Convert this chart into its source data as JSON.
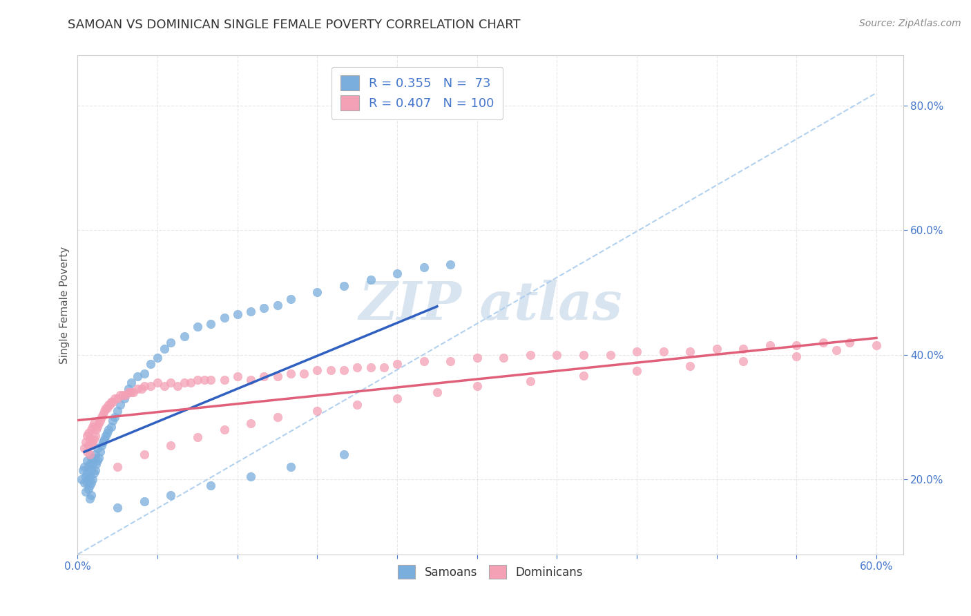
{
  "title": "SAMOAN VS DOMINICAN SINGLE FEMALE POVERTY CORRELATION CHART",
  "source": "Source: ZipAtlas.com",
  "ylabel": "Single Female Poverty",
  "xlim": [
    0.0,
    0.62
  ],
  "ylim": [
    0.08,
    0.88
  ],
  "xticks": [
    0.0,
    0.06,
    0.12,
    0.18,
    0.24,
    0.3,
    0.36,
    0.42,
    0.48,
    0.54,
    0.6
  ],
  "ytick_positions": [
    0.2,
    0.4,
    0.6,
    0.8
  ],
  "ytick_labels": [
    "20.0%",
    "40.0%",
    "60.0%",
    "80.0%"
  ],
  "blue_R": 0.355,
  "blue_N": 73,
  "pink_R": 0.407,
  "pink_N": 100,
  "blue_color": "#7aaedd",
  "pink_color": "#f4a0b5",
  "blue_line_color": "#3060c0",
  "pink_line_color": "#e0607a",
  "ref_line_color": "#aaccee",
  "watermark_text_color": "#d8e4f0",
  "background_color": "#FFFFFF",
  "grid_color": "#dddddd",
  "title_color": "#333333",
  "axis_label_color": "#555555",
  "tick_color": "#4477cc",
  "title_fontsize": 13,
  "source_fontsize": 10,
  "ylabel_fontsize": 11,
  "tick_fontsize": 11,
  "legend_fontsize": 13,
  "watermark_fontsize": 55,
  "blue_x": [
    0.003,
    0.004,
    0.005,
    0.005,
    0.006,
    0.006,
    0.007,
    0.007,
    0.007,
    0.008,
    0.008,
    0.008,
    0.009,
    0.009,
    0.009,
    0.009,
    0.01,
    0.01,
    0.01,
    0.01,
    0.011,
    0.011,
    0.012,
    0.012,
    0.013,
    0.013,
    0.014,
    0.015,
    0.015,
    0.016,
    0.017,
    0.018,
    0.019,
    0.02,
    0.021,
    0.022,
    0.023,
    0.025,
    0.026,
    0.028,
    0.03,
    0.032,
    0.035,
    0.038,
    0.04,
    0.045,
    0.05,
    0.055,
    0.06,
    0.065,
    0.07,
    0.08,
    0.09,
    0.1,
    0.11,
    0.12,
    0.13,
    0.14,
    0.15,
    0.16,
    0.18,
    0.2,
    0.22,
    0.24,
    0.26,
    0.28,
    0.03,
    0.05,
    0.07,
    0.1,
    0.13,
    0.16,
    0.2
  ],
  "blue_y": [
    0.2,
    0.215,
    0.195,
    0.22,
    0.18,
    0.205,
    0.195,
    0.21,
    0.23,
    0.185,
    0.2,
    0.22,
    0.17,
    0.19,
    0.205,
    0.225,
    0.175,
    0.195,
    0.215,
    0.235,
    0.2,
    0.225,
    0.21,
    0.235,
    0.215,
    0.24,
    0.225,
    0.23,
    0.25,
    0.235,
    0.245,
    0.255,
    0.26,
    0.265,
    0.27,
    0.275,
    0.28,
    0.285,
    0.295,
    0.3,
    0.31,
    0.32,
    0.33,
    0.345,
    0.355,
    0.365,
    0.37,
    0.385,
    0.395,
    0.41,
    0.42,
    0.43,
    0.445,
    0.45,
    0.46,
    0.465,
    0.47,
    0.475,
    0.48,
    0.49,
    0.5,
    0.51,
    0.52,
    0.53,
    0.54,
    0.545,
    0.155,
    0.165,
    0.175,
    0.19,
    0.205,
    0.22,
    0.24
  ],
  "pink_x": [
    0.005,
    0.006,
    0.007,
    0.007,
    0.008,
    0.008,
    0.009,
    0.009,
    0.01,
    0.01,
    0.011,
    0.011,
    0.012,
    0.012,
    0.013,
    0.014,
    0.015,
    0.016,
    0.017,
    0.018,
    0.019,
    0.02,
    0.021,
    0.022,
    0.023,
    0.024,
    0.025,
    0.026,
    0.028,
    0.03,
    0.032,
    0.034,
    0.036,
    0.038,
    0.04,
    0.042,
    0.045,
    0.048,
    0.05,
    0.055,
    0.06,
    0.065,
    0.07,
    0.075,
    0.08,
    0.085,
    0.09,
    0.095,
    0.1,
    0.11,
    0.12,
    0.13,
    0.14,
    0.15,
    0.16,
    0.17,
    0.18,
    0.19,
    0.2,
    0.21,
    0.22,
    0.23,
    0.24,
    0.26,
    0.28,
    0.3,
    0.32,
    0.34,
    0.36,
    0.38,
    0.4,
    0.42,
    0.44,
    0.46,
    0.48,
    0.5,
    0.52,
    0.54,
    0.56,
    0.58,
    0.03,
    0.05,
    0.07,
    0.09,
    0.11,
    0.13,
    0.15,
    0.18,
    0.21,
    0.24,
    0.27,
    0.3,
    0.34,
    0.38,
    0.42,
    0.46,
    0.5,
    0.54,
    0.57,
    0.6
  ],
  "pink_y": [
    0.25,
    0.26,
    0.245,
    0.27,
    0.255,
    0.275,
    0.24,
    0.265,
    0.255,
    0.28,
    0.26,
    0.285,
    0.265,
    0.29,
    0.27,
    0.28,
    0.285,
    0.29,
    0.295,
    0.3,
    0.305,
    0.31,
    0.315,
    0.315,
    0.32,
    0.32,
    0.325,
    0.325,
    0.33,
    0.33,
    0.335,
    0.335,
    0.335,
    0.34,
    0.34,
    0.34,
    0.345,
    0.345,
    0.35,
    0.35,
    0.355,
    0.35,
    0.355,
    0.35,
    0.355,
    0.355,
    0.36,
    0.36,
    0.36,
    0.36,
    0.365,
    0.36,
    0.365,
    0.365,
    0.37,
    0.37,
    0.375,
    0.375,
    0.375,
    0.38,
    0.38,
    0.38,
    0.385,
    0.39,
    0.39,
    0.395,
    0.395,
    0.4,
    0.4,
    0.4,
    0.4,
    0.405,
    0.405,
    0.405,
    0.41,
    0.41,
    0.415,
    0.415,
    0.42,
    0.42,
    0.22,
    0.24,
    0.255,
    0.268,
    0.28,
    0.29,
    0.3,
    0.31,
    0.32,
    0.33,
    0.34,
    0.35,
    0.358,
    0.366,
    0.374,
    0.382,
    0.39,
    0.398,
    0.408,
    0.415
  ]
}
